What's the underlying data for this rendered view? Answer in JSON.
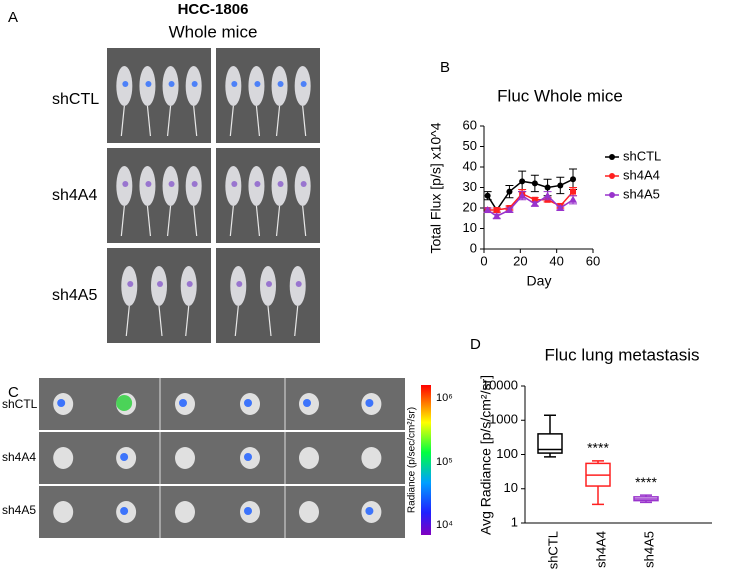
{
  "panel_a": {
    "letter": "A",
    "title": "HCC-1806",
    "subtitle": "Whole mice",
    "rows": [
      "shCTL",
      "sh4A4",
      "sh4A5"
    ]
  },
  "panel_c": {
    "letter": "C",
    "rows": [
      "shCTL",
      "sh4A4",
      "sh4A5"
    ],
    "colorbar_label": "Radiance (p/sec/cm²/sr)",
    "colorbar_ticks": [
      "10⁶",
      "10⁵",
      "10⁴"
    ]
  },
  "chart_data": [
    {
      "panel": "B",
      "type": "line",
      "title": "Fluc Whole mice",
      "xlabel": "Day",
      "ylabel": "Total Flux [p/s] x10^4",
      "x": [
        2,
        7,
        14,
        21,
        28,
        35,
        42,
        49
      ],
      "series": [
        {
          "name": "shCTL",
          "color": "#000000",
          "values": [
            26,
            19,
            28,
            33,
            32,
            30,
            31,
            34
          ],
          "errors": [
            2,
            1,
            3,
            5,
            4,
            4,
            4,
            5
          ]
        },
        {
          "name": "sh4A4",
          "color": "#ff2020",
          "values": [
            19,
            19,
            20,
            27,
            24,
            24,
            21,
            28
          ],
          "errors": [
            1,
            1,
            1,
            2,
            1,
            1,
            1,
            2
          ]
        },
        {
          "name": "sh4A5",
          "color": "#9933cc",
          "values": [
            19,
            16,
            19,
            26,
            22,
            26,
            20,
            24
          ],
          "errors": [
            1,
            1,
            1,
            2,
            1,
            2,
            1,
            2
          ]
        }
      ],
      "xlim": [
        0,
        60
      ],
      "xticks": [
        0,
        20,
        40,
        60
      ],
      "ylim": [
        0,
        60
      ],
      "yticks": [
        0,
        10,
        20,
        30,
        40,
        50,
        60
      ],
      "legend": "right"
    },
    {
      "panel": "D",
      "type": "box",
      "title": "Fluc lung metastasis",
      "ylabel": "Avg Radiance [p/s/cm²/sr]",
      "categories": [
        "shCTL",
        "sh4A4",
        "sh4A5"
      ],
      "colors": [
        "#000000",
        "#ff2020",
        "#9933cc"
      ],
      "min": [
        85,
        3.5,
        4
      ],
      "q1": [
        110,
        12,
        4.5
      ],
      "median": [
        140,
        25,
        5
      ],
      "q3": [
        400,
        55,
        5.8
      ],
      "max": [
        1400,
        65,
        6.5
      ],
      "annotations": [
        {
          "category": "sh4A4",
          "text": "****"
        },
        {
          "category": "sh4A5",
          "text": "****"
        }
      ],
      "yscale": "log",
      "ylim": [
        1,
        10000
      ],
      "yticks": [
        1,
        10,
        100,
        1000,
        10000
      ]
    }
  ]
}
